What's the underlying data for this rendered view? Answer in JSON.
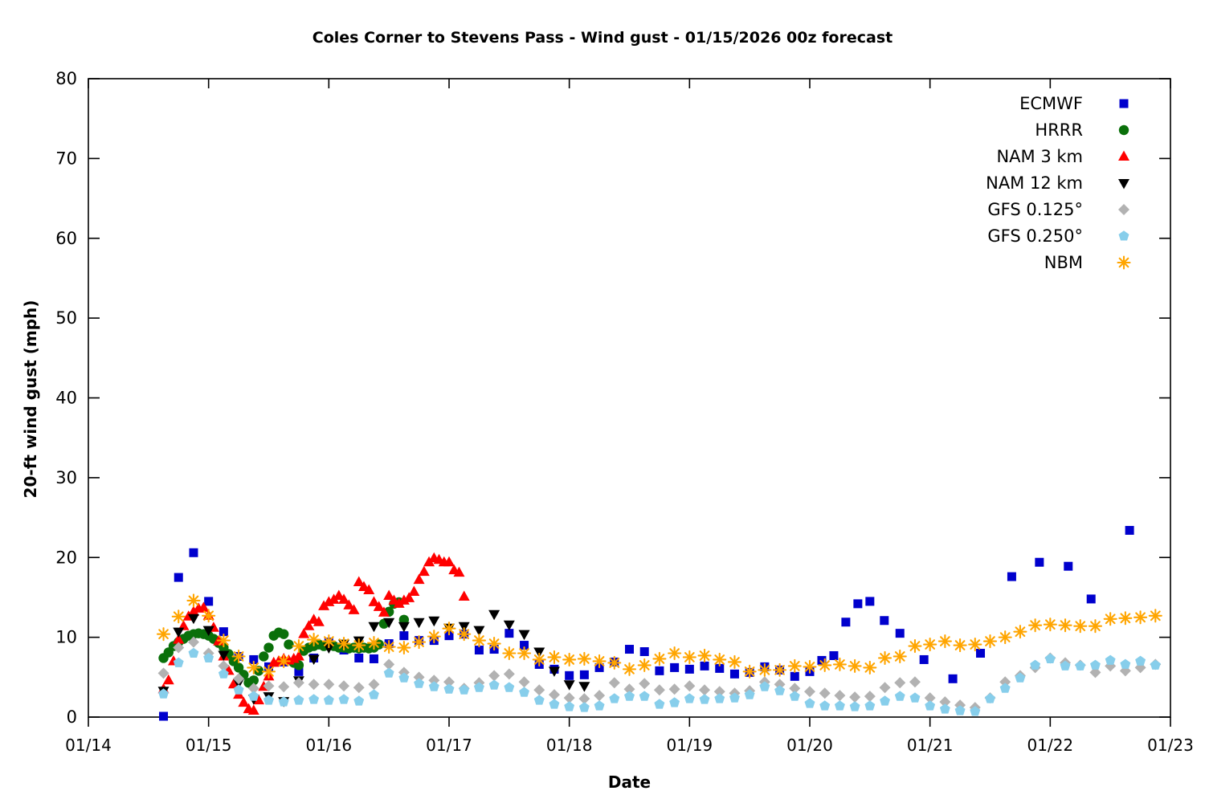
{
  "title": "Coles Corner to Stevens Pass - Wind gust - 01/15/2026 00z forecast",
  "chart_data": {
    "type": "scatter",
    "title": "Coles Corner to Stevens Pass - Wind gust - 01/15/2026 00z forecast",
    "xlabel": "Date",
    "ylabel": "20-ft wind gust (mph)",
    "grid": false,
    "legend_position": "inside-top-right",
    "x_axis": {
      "range_days": [
        0,
        9
      ],
      "tick_labels": [
        "01/14",
        "01/15",
        "01/16",
        "01/17",
        "01/18",
        "01/19",
        "01/20",
        "01/21",
        "01/22",
        "01/23"
      ],
      "tick_t": [
        0,
        1,
        2,
        3,
        4,
        5,
        6,
        7,
        8,
        9
      ]
    },
    "y_axis": {
      "range": [
        0,
        80
      ],
      "ticks": [
        0,
        10,
        20,
        30,
        40,
        50,
        60,
        70,
        80
      ]
    },
    "series": [
      {
        "name": "ECMWF",
        "color": "#0000cd",
        "marker": "square",
        "points": [
          [
            0.625,
            0.1
          ],
          [
            0.75,
            17.5
          ],
          [
            0.875,
            20.6
          ],
          [
            1.0,
            14.5
          ],
          [
            1.125,
            10.7
          ],
          [
            1.25,
            7.6
          ],
          [
            1.375,
            7.2
          ],
          [
            1.5,
            6.3
          ],
          [
            1.625,
            6.9
          ],
          [
            1.75,
            5.7
          ],
          [
            1.875,
            7.4
          ],
          [
            2.0,
            9.4
          ],
          [
            2.125,
            8.4
          ],
          [
            2.25,
            7.4
          ],
          [
            2.375,
            7.3
          ],
          [
            2.5,
            9.2
          ],
          [
            2.625,
            10.2
          ],
          [
            2.75,
            9.6
          ],
          [
            2.875,
            9.6
          ],
          [
            3.0,
            10.2
          ],
          [
            3.125,
            10.4
          ],
          [
            3.25,
            8.4
          ],
          [
            3.375,
            8.5
          ],
          [
            3.5,
            10.5
          ],
          [
            3.625,
            9.0
          ],
          [
            3.75,
            6.6
          ],
          [
            3.875,
            6.0
          ],
          [
            4.0,
            5.2
          ],
          [
            4.125,
            5.3
          ],
          [
            4.25,
            6.2
          ],
          [
            4.375,
            6.9
          ],
          [
            4.5,
            8.5
          ],
          [
            4.625,
            8.2
          ],
          [
            4.75,
            5.8
          ],
          [
            4.875,
            6.2
          ],
          [
            5.0,
            6.0
          ],
          [
            5.125,
            6.4
          ],
          [
            5.25,
            6.1
          ],
          [
            5.375,
            5.4
          ],
          [
            5.5,
            5.6
          ],
          [
            5.625,
            6.3
          ],
          [
            5.75,
            5.9
          ],
          [
            5.875,
            5.1
          ],
          [
            6.0,
            5.7
          ],
          [
            6.1,
            7.1
          ],
          [
            6.2,
            7.7
          ],
          [
            6.3,
            11.9
          ],
          [
            6.4,
            14.2
          ],
          [
            6.5,
            14.5
          ],
          [
            6.62,
            12.1
          ],
          [
            6.75,
            10.5
          ],
          [
            6.95,
            7.2
          ],
          [
            7.19,
            4.8
          ],
          [
            7.42,
            8.0
          ],
          [
            7.68,
            17.6
          ],
          [
            7.91,
            19.4
          ],
          [
            8.15,
            18.9
          ],
          [
            8.34,
            14.8
          ],
          [
            8.66,
            23.4
          ]
        ]
      },
      {
        "name": "HRRR",
        "color": "#0a700a",
        "marker": "circle",
        "t0": 0.625,
        "dt_hours": 1,
        "values": [
          7.4,
          8.1,
          8.9,
          9.4,
          9.8,
          10.2,
          10.4,
          10.5,
          10.4,
          10.2,
          9.8,
          9.3,
          8.7,
          7.9,
          7.0,
          6.2,
          5.3,
          4.3,
          4.6,
          5.8,
          7.6,
          8.7,
          10.2,
          10.6,
          10.4,
          9.1,
          6.8,
          6.5,
          8.3,
          8.7,
          8.9,
          9.1,
          8.9,
          9.1,
          8.9,
          8.7,
          8.7,
          8.6,
          8.7,
          8.6,
          8.7,
          8.6,
          8.7,
          9.1,
          11.7,
          13.2,
          14.2,
          14.4,
          12.2
        ]
      },
      {
        "name": "NAM 3 km",
        "color": "#ff0000",
        "marker": "triangle-up",
        "t0": 0.625,
        "dt_hours": 1,
        "values": [
          3.5,
          4.6,
          7.0,
          9.7,
          11.4,
          12.6,
          13.2,
          13.6,
          13.7,
          12.7,
          11.2,
          9.5,
          7.6,
          5.8,
          4.1,
          2.8,
          1.8,
          1.0,
          0.8,
          2.1,
          3.8,
          5.1,
          6.8,
          7.0,
          7.3,
          7.1,
          7.3,
          7.6,
          10.4,
          11.4,
          12.2,
          11.9,
          13.9,
          14.4,
          14.7,
          15.2,
          14.7,
          14.0,
          13.4,
          16.9,
          16.3,
          15.9,
          14.4,
          13.8,
          13.1,
          15.2,
          14.6,
          14.2,
          14.6,
          14.9,
          15.7,
          17.2,
          18.2,
          19.4,
          19.9,
          19.7,
          19.4,
          19.4,
          18.4,
          18.1,
          15.1
        ]
      },
      {
        "name": "NAM 12 km",
        "color": "#000000",
        "marker": "triangle-down",
        "t0": 0.625,
        "dt_hours": 3,
        "values": [
          3.3,
          10.7,
          12.4,
          10.9,
          7.8,
          4.3,
          2.3,
          2.6,
          2.0,
          4.6,
          7.3,
          8.7,
          9.2,
          9.6,
          11.4,
          11.9,
          11.4,
          11.9,
          12.1,
          11.2,
          11.4,
          10.9,
          12.9,
          11.6,
          10.4,
          8.2,
          5.8,
          4.1,
          3.9
        ]
      },
      {
        "name": "GFS 0.125°",
        "color": "#b2b2b2",
        "marker": "diamond",
        "t0": 0.625,
        "dt_hours": 3,
        "values": [
          5.5,
          8.7,
          9.4,
          8.0,
          6.4,
          4.8,
          3.6,
          3.9,
          3.8,
          4.3,
          4.1,
          4.1,
          3.9,
          3.7,
          4.1,
          6.6,
          5.6,
          5.0,
          4.6,
          4.4,
          3.6,
          4.3,
          5.2,
          5.4,
          4.4,
          3.4,
          2.8,
          2.4,
          2.3,
          2.7,
          4.3,
          3.5,
          4.2,
          3.4,
          3.5,
          3.9,
          3.4,
          3.2,
          3.0,
          3.3,
          4.4,
          4.1,
          3.6,
          3.2,
          3.0,
          2.7,
          2.5,
          2.6,
          3.7,
          4.3,
          4.4,
          2.4,
          1.9,
          1.5,
          1.2,
          2.4,
          4.4,
          5.2,
          6.2,
          7.4,
          6.8,
          6.5,
          5.6,
          6.4,
          5.8,
          6.2,
          6.6
        ]
      },
      {
        "name": "GFS 0.250°",
        "color": "#87ceeb",
        "marker": "pentagon",
        "t0": 0.625,
        "dt_hours": 3,
        "values": [
          2.9,
          6.8,
          8.0,
          7.4,
          5.4,
          3.4,
          2.6,
          2.1,
          1.9,
          2.1,
          2.2,
          2.1,
          2.2,
          2.0,
          2.8,
          5.5,
          4.9,
          4.2,
          3.8,
          3.5,
          3.4,
          3.7,
          4.0,
          3.7,
          3.1,
          2.1,
          1.6,
          1.3,
          1.2,
          1.4,
          2.3,
          2.6,
          2.6,
          1.6,
          1.8,
          2.3,
          2.2,
          2.3,
          2.4,
          2.8,
          3.8,
          3.3,
          2.6,
          1.7,
          1.4,
          1.4,
          1.3,
          1.4,
          2.0,
          2.6,
          2.4,
          1.4,
          1.0,
          0.8,
          0.7,
          2.3,
          3.6,
          4.9,
          6.5,
          7.3,
          6.4,
          6.4,
          6.5,
          7.1,
          6.6,
          7.0,
          6.5
        ]
      },
      {
        "name": "NBM",
        "color": "#ffa500",
        "marker": "asterisk",
        "t0": 0.625,
        "dt_hours": 3,
        "values": [
          10.4,
          12.6,
          14.6,
          12.7,
          9.6,
          7.6,
          6.2,
          5.7,
          7.0,
          8.9,
          9.7,
          9.5,
          9.2,
          9.0,
          9.3,
          8.8,
          8.7,
          9.4,
          10.1,
          11.1,
          10.4,
          9.6,
          9.2,
          8.0,
          8.0,
          7.2,
          7.5,
          7.2,
          7.3,
          7.0,
          6.8,
          6.0,
          6.5,
          7.3,
          8.0,
          7.5,
          7.7,
          7.2,
          6.9,
          5.7,
          5.9,
          5.9,
          6.4,
          6.3,
          6.5,
          6.6,
          6.4,
          6.2,
          7.4,
          7.6,
          8.9,
          9.1,
          9.5,
          9.0,
          9.1,
          9.5,
          10.0,
          10.7,
          11.5,
          11.6,
          11.5,
          11.4,
          11.4,
          12.3,
          12.4,
          12.5,
          12.7
        ]
      }
    ]
  }
}
